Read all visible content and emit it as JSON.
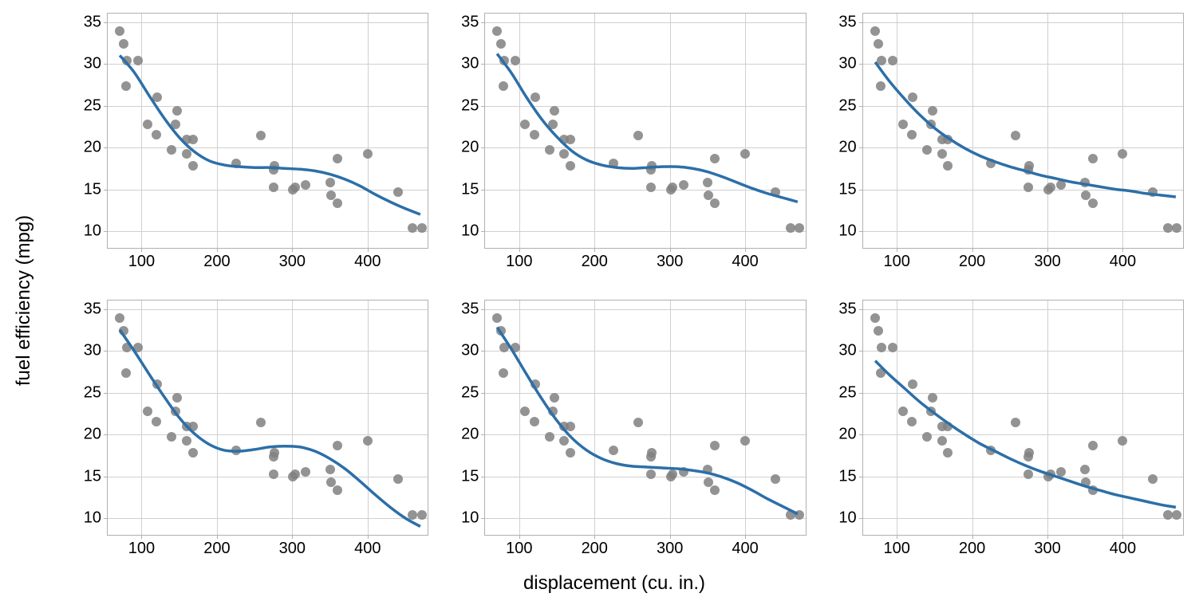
{
  "figure": {
    "ylabel": "fuel efficiency (mpg)",
    "xlabel": "displacement (cu. in.)",
    "background_color": "#ffffff",
    "grid_color": "#d0d0d0",
    "border_color": "#b0b0b0",
    "tick_fontsize": 20,
    "label_fontsize": 24,
    "rows": 2,
    "cols": 3
  },
  "axes": {
    "xlim": [
      55,
      480
    ],
    "ylim": [
      8,
      36
    ],
    "xticks": [
      100,
      200,
      300,
      400
    ],
    "yticks": [
      10,
      15,
      20,
      25,
      30,
      35
    ]
  },
  "scatter": {
    "marker": "circle",
    "size": 12,
    "color": "#808080",
    "opacity": 0.85,
    "points": [
      [
        71,
        33.9
      ],
      [
        76,
        32.4
      ],
      [
        79,
        27.3
      ],
      [
        80,
        30.4
      ],
      [
        95,
        30.4
      ],
      [
        108,
        22.8
      ],
      [
        120,
        21.5
      ],
      [
        121,
        26.0
      ],
      [
        140,
        19.7
      ],
      [
        145,
        22.8
      ],
      [
        147,
        24.4
      ],
      [
        160,
        21.0
      ],
      [
        160,
        19.2
      ],
      [
        168,
        21.0
      ],
      [
        168,
        17.8
      ],
      [
        225,
        18.1
      ],
      [
        258,
        21.4
      ],
      [
        275,
        15.2
      ],
      [
        275,
        17.3
      ],
      [
        276,
        17.8
      ],
      [
        301,
        15.0
      ],
      [
        304,
        15.2
      ],
      [
        318,
        15.5
      ],
      [
        350,
        15.8
      ],
      [
        351,
        14.3
      ],
      [
        360,
        13.3
      ],
      [
        360,
        18.7
      ],
      [
        400,
        19.2
      ],
      [
        440,
        14.7
      ],
      [
        460,
        10.4
      ],
      [
        472,
        10.4
      ]
    ]
  },
  "curves": {
    "color": "#2c6fa8",
    "width": 3.5,
    "panels": [
      [
        [
          71,
          31.0
        ],
        [
          90,
          29.0
        ],
        [
          110,
          26.2
        ],
        [
          130,
          23.5
        ],
        [
          150,
          21.2
        ],
        [
          170,
          19.5
        ],
        [
          190,
          18.4
        ],
        [
          210,
          17.9
        ],
        [
          230,
          17.7
        ],
        [
          250,
          17.6
        ],
        [
          270,
          17.6
        ],
        [
          290,
          17.5
        ],
        [
          310,
          17.4
        ],
        [
          330,
          17.2
        ],
        [
          350,
          16.8
        ],
        [
          370,
          16.2
        ],
        [
          390,
          15.4
        ],
        [
          410,
          14.4
        ],
        [
          430,
          13.5
        ],
        [
          450,
          12.7
        ],
        [
          470,
          12.0
        ]
      ],
      [
        [
          71,
          31.2
        ],
        [
          90,
          28.9
        ],
        [
          110,
          26.0
        ],
        [
          130,
          23.4
        ],
        [
          150,
          21.3
        ],
        [
          170,
          19.6
        ],
        [
          190,
          18.5
        ],
        [
          210,
          17.9
        ],
        [
          230,
          17.6
        ],
        [
          250,
          17.5
        ],
        [
          270,
          17.6
        ],
        [
          290,
          17.7
        ],
        [
          310,
          17.7
        ],
        [
          330,
          17.5
        ],
        [
          350,
          17.1
        ],
        [
          370,
          16.5
        ],
        [
          390,
          15.8
        ],
        [
          410,
          15.1
        ],
        [
          430,
          14.5
        ],
        [
          450,
          14.0
        ],
        [
          470,
          13.5
        ]
      ],
      [
        [
          71,
          30.2
        ],
        [
          90,
          27.9
        ],
        [
          110,
          25.8
        ],
        [
          130,
          23.9
        ],
        [
          150,
          22.3
        ],
        [
          170,
          21.0
        ],
        [
          190,
          19.9
        ],
        [
          210,
          19.0
        ],
        [
          230,
          18.3
        ],
        [
          250,
          17.7
        ],
        [
          270,
          17.2
        ],
        [
          290,
          16.7
        ],
        [
          310,
          16.3
        ],
        [
          330,
          15.9
        ],
        [
          350,
          15.6
        ],
        [
          370,
          15.3
        ],
        [
          390,
          15.0
        ],
        [
          410,
          14.8
        ],
        [
          430,
          14.5
        ],
        [
          450,
          14.3
        ],
        [
          470,
          14.1
        ]
      ],
      [
        [
          71,
          32.5
        ],
        [
          90,
          30.0
        ],
        [
          110,
          27.2
        ],
        [
          130,
          24.5
        ],
        [
          150,
          22.0
        ],
        [
          170,
          20.1
        ],
        [
          190,
          18.8
        ],
        [
          210,
          18.1
        ],
        [
          230,
          18.0
        ],
        [
          250,
          18.2
        ],
        [
          270,
          18.5
        ],
        [
          290,
          18.6
        ],
        [
          310,
          18.5
        ],
        [
          330,
          18.0
        ],
        [
          350,
          17.1
        ],
        [
          370,
          15.9
        ],
        [
          390,
          14.4
        ],
        [
          410,
          12.8
        ],
        [
          430,
          11.3
        ],
        [
          450,
          10.0
        ],
        [
          470,
          9.0
        ]
      ],
      [
        [
          71,
          32.8
        ],
        [
          90,
          30.2
        ],
        [
          110,
          27.2
        ],
        [
          130,
          24.3
        ],
        [
          150,
          21.7
        ],
        [
          170,
          19.6
        ],
        [
          190,
          18.1
        ],
        [
          210,
          17.1
        ],
        [
          230,
          16.5
        ],
        [
          250,
          16.2
        ],
        [
          270,
          16.1
        ],
        [
          290,
          16.0
        ],
        [
          310,
          15.9
        ],
        [
          330,
          15.7
        ],
        [
          350,
          15.4
        ],
        [
          370,
          14.9
        ],
        [
          390,
          14.2
        ],
        [
          410,
          13.3
        ],
        [
          430,
          12.3
        ],
        [
          450,
          11.4
        ],
        [
          470,
          10.5
        ]
      ],
      [
        [
          71,
          28.8
        ],
        [
          90,
          27.1
        ],
        [
          110,
          25.5
        ],
        [
          130,
          23.9
        ],
        [
          150,
          22.5
        ],
        [
          170,
          21.2
        ],
        [
          190,
          20.0
        ],
        [
          210,
          18.9
        ],
        [
          230,
          18.0
        ],
        [
          250,
          17.1
        ],
        [
          270,
          16.3
        ],
        [
          290,
          15.6
        ],
        [
          310,
          15.0
        ],
        [
          330,
          14.4
        ],
        [
          350,
          13.8
        ],
        [
          370,
          13.3
        ],
        [
          390,
          12.8
        ],
        [
          410,
          12.4
        ],
        [
          430,
          12.0
        ],
        [
          450,
          11.6
        ],
        [
          470,
          11.3
        ]
      ]
    ]
  }
}
